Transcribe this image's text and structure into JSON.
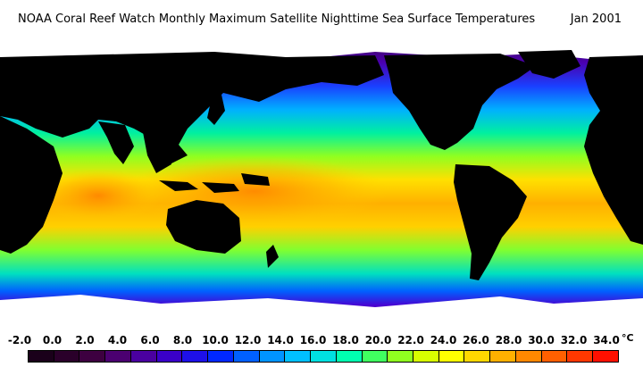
{
  "header": {
    "title": "NOAA Coral Reef Watch Monthly Maximum Satellite Nighttime Sea Surface Temperatures",
    "date": "Jan 2001"
  },
  "map": {
    "projection": "equirectangular",
    "land_color": "#000000",
    "ice_color": "#ffffff",
    "palette_note": "ocean colored by temperature per legend"
  },
  "legend": {
    "unit": "°C",
    "ticks": [
      "-2.0",
      "0.0",
      "2.0",
      "4.0",
      "6.0",
      "8.0",
      "10.0",
      "12.0",
      "14.0",
      "16.0",
      "18.0",
      "20.0",
      "22.0",
      "24.0",
      "26.0",
      "28.0",
      "30.0",
      "32.0",
      "34.0"
    ],
    "colors": [
      "#1a001a",
      "#2a002a",
      "#3d0040",
      "#4b0070",
      "#4a00a0",
      "#3a00c8",
      "#1e10e8",
      "#0028ff",
      "#0060ff",
      "#0094ff",
      "#00c0ff",
      "#00e0e0",
      "#00ffb0",
      "#40ff60",
      "#90ff20",
      "#d8ff00",
      "#ffff00",
      "#ffd800",
      "#ffb000",
      "#ff8800",
      "#ff6000",
      "#ff3800",
      "#ff1000"
    ]
  }
}
